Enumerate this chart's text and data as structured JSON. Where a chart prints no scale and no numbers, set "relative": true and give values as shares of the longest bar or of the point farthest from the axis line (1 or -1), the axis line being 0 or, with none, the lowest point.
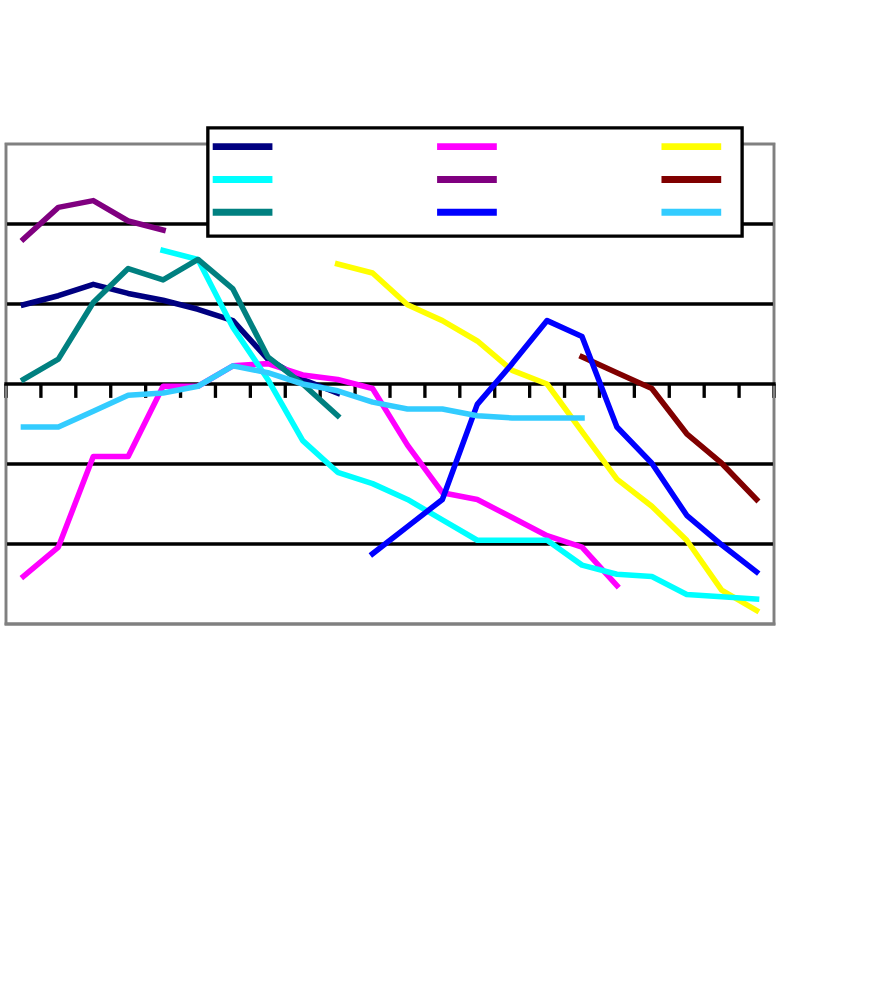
{
  "chart_data": {
    "type": "line",
    "relative": true,
    "grid": "y",
    "marker": "none",
    "line_style": "solid",
    "categories": [
      null,
      null,
      null,
      null,
      null,
      null,
      null,
      null,
      null,
      null,
      null,
      null,
      null,
      null,
      null,
      null,
      null,
      null,
      null,
      null,
      null,
      null
    ],
    "series": [
      {
        "color": "#000080",
        "values": [
          0.35,
          0.39,
          0.44,
          0.4,
          0.37,
          0.33,
          0.28,
          0.11,
          0.02,
          -0.04,
          null,
          null,
          null,
          null,
          null,
          null,
          null,
          null,
          null,
          null,
          null,
          null
        ]
      },
      {
        "color": "#ff00ff",
        "values": [
          -0.85,
          -0.72,
          -0.32,
          -0.32,
          -0.01,
          -0.01,
          0.08,
          0.09,
          0.04,
          0.02,
          -0.02,
          -0.27,
          -0.48,
          -0.51,
          -0.59,
          -0.67,
          -0.72,
          -0.89,
          null,
          null,
          null,
          null
        ]
      },
      {
        "color": "#ffff00",
        "values": [
          null,
          null,
          null,
          null,
          null,
          null,
          null,
          null,
          null,
          0.53,
          0.49,
          0.35,
          0.28,
          0.19,
          0.06,
          0,
          -0.21,
          -0.42,
          -0.54,
          -0.69,
          -0.91,
          -1
        ]
      },
      {
        "color": "#00ffff",
        "values": [
          null,
          null,
          null,
          null,
          0.59,
          0.55,
          0.25,
          0.02,
          -0.25,
          -0.39,
          -0.44,
          -0.51,
          -0.6,
          -0.69,
          -0.69,
          -0.69,
          -0.8,
          -0.84,
          -0.85,
          -0.93,
          -0.94,
          -0.95
        ]
      },
      {
        "color": "#800080",
        "values": [
          0.64,
          0.78,
          0.81,
          0.72,
          0.68,
          null,
          null,
          null,
          null,
          null,
          null,
          null,
          null,
          null,
          null,
          null,
          null,
          null,
          null,
          null,
          null,
          null
        ]
      },
      {
        "color": "#800000",
        "values": [
          null,
          null,
          null,
          null,
          null,
          null,
          null,
          null,
          null,
          null,
          null,
          null,
          null,
          null,
          null,
          null,
          0.12,
          0.05,
          -0.02,
          -0.22,
          -0.35,
          -0.51
        ]
      },
      {
        "color": "#008080",
        "values": [
          0.02,
          0.11,
          0.36,
          0.51,
          0.46,
          0.55,
          0.42,
          0.12,
          0.0,
          -0.14,
          null,
          null,
          null,
          null,
          null,
          null,
          null,
          null,
          null,
          null,
          null,
          null
        ]
      },
      {
        "color": "#0000ff",
        "values": [
          null,
          null,
          null,
          null,
          null,
          null,
          null,
          null,
          null,
          null,
          -0.75,
          -0.63,
          -0.51,
          -0.09,
          0.09,
          0.28,
          0.21,
          -0.19,
          -0.35,
          -0.58,
          -0.71,
          -0.83
        ]
      },
      {
        "color": "#33ccff",
        "values": [
          -0.19,
          -0.19,
          -0.12,
          -0.05,
          -0.04,
          -0.01,
          0.08,
          0.05,
          0.0,
          -0.03,
          -0.08,
          -0.11,
          -0.11,
          -0.14,
          -0.15,
          -0.15,
          -0.15,
          null,
          null,
          null,
          null,
          null
        ]
      }
    ]
  }
}
